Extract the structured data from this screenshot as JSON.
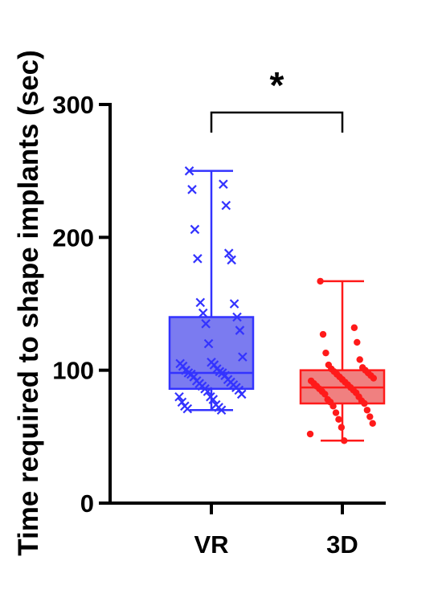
{
  "chart_data": {
    "type": "box",
    "title": "",
    "xlabel": "",
    "ylabel": "Time required to shape implants (sec)",
    "ylim": [
      0,
      300
    ],
    "yticks": [
      0,
      100,
      200,
      300
    ],
    "categories": [
      "VR",
      "3D"
    ],
    "significance": {
      "label": "*",
      "between": [
        "VR",
        "3D"
      ]
    },
    "series": [
      {
        "category": "VR",
        "color": "#3333ff",
        "fill": "#7b7bf0",
        "marker": "x",
        "box": {
          "min": 70,
          "q1": 86,
          "median": 98,
          "q3": 140,
          "max": 250
        },
        "points": [
          250,
          240,
          236,
          224,
          206,
          188,
          184,
          183,
          151,
          150,
          143,
          140,
          135,
          130,
          120,
          110,
          106,
          105,
          104,
          103,
          101,
          100,
          99,
          98,
          98,
          97,
          96,
          95,
          93,
          92,
          91,
          90,
          89,
          88,
          87,
          86,
          85,
          84,
          82,
          80,
          80,
          78,
          76,
          74,
          73,
          72,
          71,
          70
        ]
      },
      {
        "category": "3D",
        "color": "#ff1a1a",
        "fill": "#f08080",
        "marker": "dot",
        "box": {
          "min": 47,
          "q1": 75,
          "median": 87,
          "q3": 100,
          "max": 167
        },
        "points": [
          167,
          132,
          127,
          121,
          113,
          108,
          104,
          102,
          101,
          100,
          99,
          98,
          97,
          96,
          95,
          94,
          93,
          92,
          91,
          90,
          89,
          88,
          87,
          86,
          85,
          84,
          83,
          82,
          80,
          78,
          77,
          76,
          75,
          73,
          70,
          68,
          65,
          63,
          60,
          57,
          52,
          47
        ]
      }
    ]
  }
}
